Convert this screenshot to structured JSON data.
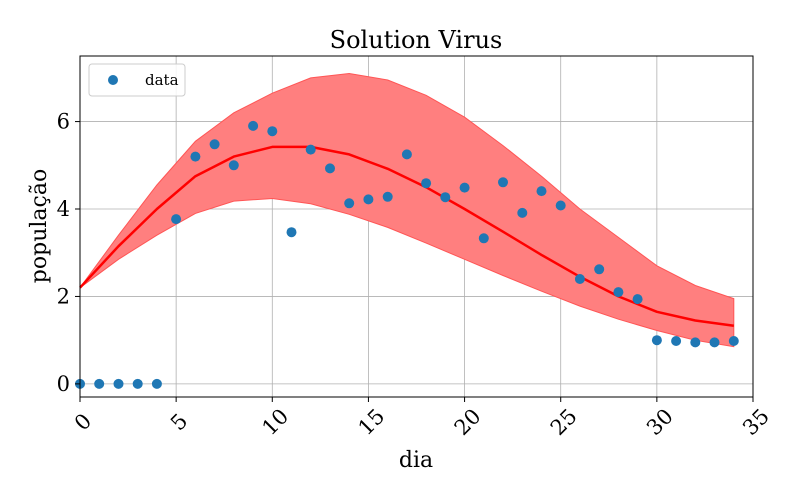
{
  "chart_data": {
    "type": "scatter",
    "title": "Solution Virus",
    "xlabel": "dia",
    "ylabel": "população",
    "xlim": [
      0,
      35
    ],
    "ylim": [
      -0.3,
      7.5
    ],
    "xticks": [
      0,
      5,
      10,
      15,
      20,
      25,
      30,
      35
    ],
    "yticks": [
      0,
      2,
      4,
      6
    ],
    "grid": true,
    "legend": {
      "position": "top-left",
      "entries": [
        "data"
      ]
    },
    "colors": {
      "data": "#1f77b4",
      "fit": "#ff0000",
      "band": "#ff7f7f"
    },
    "series": [
      {
        "name": "data",
        "kind": "scatter",
        "x": [
          0,
          1,
          2,
          3,
          4,
          5,
          6,
          7,
          8,
          9,
          10,
          11,
          12,
          13,
          14,
          15,
          16,
          17,
          18,
          19,
          20,
          21,
          22,
          23,
          24,
          25,
          26,
          27,
          28,
          29,
          30,
          31,
          32,
          33,
          34
        ],
        "y": [
          0,
          0,
          0,
          0,
          0,
          3.77,
          5.2,
          5.48,
          5.0,
          5.9,
          5.78,
          3.47,
          5.36,
          4.93,
          4.13,
          4.22,
          4.28,
          5.25,
          4.59,
          4.27,
          4.49,
          3.33,
          4.61,
          3.91,
          4.41,
          4.08,
          2.4,
          2.62,
          2.1,
          1.94,
          1.0,
          0.98,
          0.95,
          0.95,
          0.98
        ]
      },
      {
        "kind": "line",
        "x": [
          0,
          2,
          4,
          6,
          8,
          10,
          12,
          14,
          16,
          18,
          20,
          22,
          24,
          26,
          28,
          30,
          32,
          34
        ],
        "y": [
          2.2,
          3.15,
          4.0,
          4.75,
          5.2,
          5.42,
          5.42,
          5.25,
          4.92,
          4.5,
          4.0,
          3.48,
          2.95,
          2.45,
          2.0,
          1.65,
          1.45,
          1.33
        ]
      },
      {
        "kind": "band",
        "x": [
          0,
          2,
          4,
          6,
          8,
          10,
          12,
          14,
          16,
          18,
          20,
          22,
          24,
          26,
          28,
          30,
          32,
          34
        ],
        "lower": [
          2.2,
          2.85,
          3.4,
          3.9,
          4.18,
          4.24,
          4.12,
          3.88,
          3.58,
          3.22,
          2.85,
          2.48,
          2.12,
          1.78,
          1.48,
          1.22,
          1.0,
          0.85
        ],
        "upper": [
          2.2,
          3.4,
          4.55,
          5.55,
          6.2,
          6.65,
          7.0,
          7.1,
          6.95,
          6.6,
          6.1,
          5.45,
          4.75,
          4.0,
          3.35,
          2.7,
          2.25,
          1.95
        ]
      }
    ]
  }
}
